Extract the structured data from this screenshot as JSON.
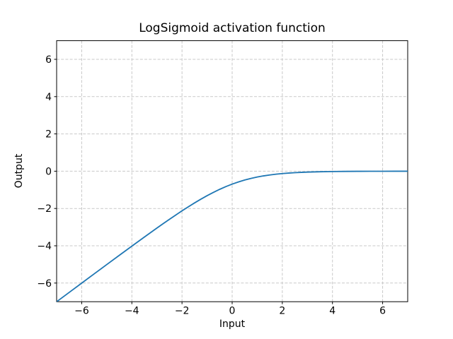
{
  "figure": {
    "title": "LogSigmoid activation function",
    "xlabel": "Input",
    "ylabel": "Output"
  },
  "chart_data": {
    "type": "line",
    "title": "LogSigmoid activation function",
    "xlabel": "Input",
    "ylabel": "Output",
    "xlim": [
      -7,
      7
    ],
    "ylim": [
      -7,
      7
    ],
    "x_ticks": [
      -6,
      -4,
      -2,
      0,
      2,
      4,
      6
    ],
    "y_ticks": [
      -6,
      -4,
      -2,
      0,
      2,
      4,
      6
    ],
    "grid": true,
    "grid_style": "dashed",
    "legend": "none",
    "colors": {
      "line": "#1f77b4",
      "grid": "#c9c9c9",
      "spine": "#000000",
      "tick": "#000000",
      "background": "#ffffff",
      "text": "#000000"
    },
    "series": [
      {
        "name": "LogSigmoid",
        "x": [
          -7,
          -6.5,
          -6,
          -5.5,
          -5,
          -4.5,
          -4,
          -3.5,
          -3,
          -2.75,
          -2.5,
          -2.25,
          -2,
          -1.75,
          -1.5,
          -1.25,
          -1,
          -0.75,
          -0.5,
          -0.25,
          0,
          0.25,
          0.5,
          0.75,
          1,
          1.25,
          1.5,
          1.75,
          2,
          2.25,
          2.5,
          2.75,
          3,
          3.5,
          4,
          4.5,
          5,
          5.5,
          6,
          6.5,
          7
        ],
        "y": [
          -7.0009,
          -6.5015,
          -6.0025,
          -5.5041,
          -5.0067,
          -4.511,
          -4.0181,
          -3.5298,
          -3.0486,
          -2.8121,
          -2.5789,
          -2.3502,
          -2.1269,
          -1.9103,
          -1.7014,
          -1.502,
          -1.3133,
          -1.137,
          -0.9741,
          -0.8259,
          -0.6931,
          -0.576,
          -0.4741,
          -0.387,
          -0.3133,
          -0.252,
          -0.2014,
          -0.1603,
          -0.1269,
          -0.1002,
          -0.0789,
          -0.062,
          -0.0486,
          -0.0298,
          -0.0181,
          -0.0111,
          -0.0067,
          -0.0041,
          -0.0025,
          -0.0015,
          -0.0009
        ]
      }
    ]
  }
}
